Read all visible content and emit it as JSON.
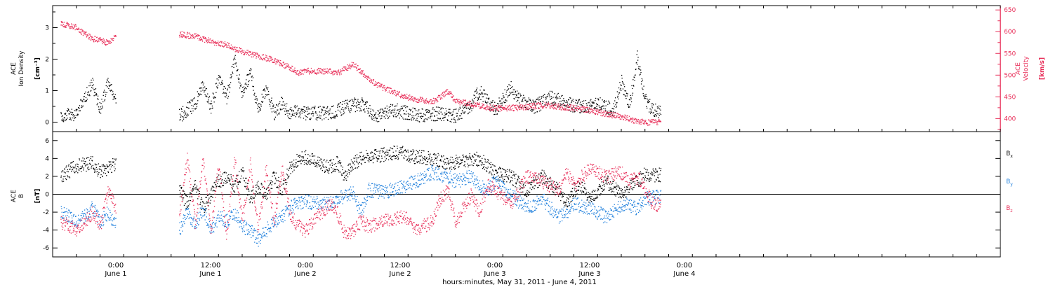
{
  "colors": {
    "axis": "#000000",
    "bx": "#000000",
    "by": "#1e7fdc",
    "bz": "#e8305a",
    "velocity": "#e8305a",
    "density": "#000000"
  },
  "xaxis": {
    "caption": "hours:minutes, May 31, 2011 - June  4, 2011",
    "range_hours": [
      -8,
      112
    ],
    "ticks": [
      {
        "hour": 0,
        "time": "0:00",
        "date": "June 1"
      },
      {
        "hour": 12,
        "time": "12:00",
        "date": "June 1"
      },
      {
        "hour": 24,
        "time": "0:00",
        "date": "June 2"
      },
      {
        "hour": 36,
        "time": "12:00",
        "date": "June 2"
      },
      {
        "hour": 48,
        "time": "0:00",
        "date": "June 3"
      },
      {
        "hour": 60,
        "time": "12:00",
        "date": "June 3"
      },
      {
        "hour": 72,
        "time": "0:00",
        "date": "June 4"
      }
    ]
  },
  "chart_data": [
    {
      "type": "scatter",
      "panel": "top",
      "ylabel_lines": [
        "ACE",
        "Ion Density"
      ],
      "yunit": "[cm⁻³]",
      "ylim": [
        -0.3,
        3.7
      ],
      "yticks": [
        0,
        1,
        2,
        3
      ],
      "y2label_lines": [
        "ACE",
        "Velocity"
      ],
      "y2unit": "[km/s]",
      "y2lim": [
        370,
        660
      ],
      "y2ticks": [
        400,
        450,
        500,
        550,
        600,
        650
      ],
      "series": [
        {
          "key": "density",
          "axis": "left",
          "points": [
            [
              -7,
              0.2
            ],
            [
              -5,
              0.3
            ],
            [
              -4,
              0.8
            ],
            [
              -3,
              1.2
            ],
            [
              -2,
              0.4
            ],
            [
              -1,
              1.3
            ],
            [
              0,
              0.6
            ],
            [
              8,
              0.2
            ],
            [
              10,
              0.6
            ],
            [
              11,
              1.2
            ],
            [
              12,
              0.5
            ],
            [
              13,
              1.4
            ],
            [
              14,
              0.8
            ],
            [
              15,
              2.0
            ],
            [
              16,
              0.9
            ],
            [
              17,
              1.6
            ],
            [
              18,
              0.4
            ],
            [
              19,
              1.1
            ],
            [
              20,
              0.3
            ],
            [
              21,
              0.6
            ],
            [
              22,
              0.3
            ],
            [
              23,
              0.4
            ],
            [
              24,
              0.3
            ],
            [
              27,
              0.3
            ],
            [
              29,
              0.5
            ],
            [
              31,
              0.6
            ],
            [
              33,
              0.2
            ],
            [
              35,
              0.4
            ],
            [
              37,
              0.3
            ],
            [
              39,
              0.2
            ],
            [
              41,
              0.3
            ],
            [
              43,
              0.2
            ],
            [
              45,
              0.6
            ],
            [
              46,
              1.0
            ],
            [
              47,
              0.7
            ],
            [
              48,
              0.4
            ],
            [
              50,
              1.1
            ],
            [
              51,
              0.7
            ],
            [
              53,
              0.5
            ],
            [
              55,
              0.8
            ],
            [
              57,
              0.6
            ],
            [
              59,
              0.5
            ],
            [
              61,
              0.6
            ],
            [
              63,
              0.4
            ],
            [
              64,
              1.3
            ],
            [
              65,
              0.5
            ],
            [
              66,
              2.1
            ],
            [
              67,
              0.7
            ],
            [
              68,
              0.4
            ],
            [
              69,
              0.3
            ]
          ]
        },
        {
          "key": "velocity",
          "axis": "right",
          "points": [
            [
              -7,
              620
            ],
            [
              -6,
              615
            ],
            [
              -5,
              610
            ],
            [
              -4,
              595
            ],
            [
              -3,
              585
            ],
            [
              -2,
              580
            ],
            [
              -1,
              575
            ],
            [
              0,
              590
            ],
            [
              8,
              595
            ],
            [
              10,
              590
            ],
            [
              12,
              578
            ],
            [
              14,
              570
            ],
            [
              16,
              555
            ],
            [
              18,
              545
            ],
            [
              20,
              535
            ],
            [
              22,
              518
            ],
            [
              23,
              505
            ],
            [
              24,
              510
            ],
            [
              27,
              510
            ],
            [
              28,
              505
            ],
            [
              29,
              515
            ],
            [
              30,
              525
            ],
            [
              31,
              510
            ],
            [
              32,
              490
            ],
            [
              34,
              470
            ],
            [
              36,
              455
            ],
            [
              38,
              445
            ],
            [
              40,
              440
            ],
            [
              41,
              450
            ],
            [
              42,
              465
            ],
            [
              43,
              440
            ],
            [
              45,
              435
            ],
            [
              46,
              430
            ],
            [
              48,
              425
            ],
            [
              50,
              425
            ],
            [
              52,
              428
            ],
            [
              54,
              432
            ],
            [
              56,
              428
            ],
            [
              58,
              425
            ],
            [
              60,
              420
            ],
            [
              62,
              412
            ],
            [
              64,
              405
            ],
            [
              66,
              395
            ],
            [
              67,
              392
            ],
            [
              68,
              393
            ],
            [
              69,
              392
            ]
          ]
        }
      ]
    },
    {
      "type": "scatter",
      "panel": "bottom",
      "ylabel_lines": [
        "ACE",
        "B"
      ],
      "yunit": "[nT]",
      "ylim": [
        -7,
        7
      ],
      "yticks": [
        -6,
        -4,
        -2,
        0,
        2,
        4,
        6
      ],
      "zero_line": true,
      "series": [
        {
          "key": "bx",
          "name_main": "B",
          "name_sub": "x",
          "points": [
            [
              -7,
              2.0
            ],
            [
              -5,
              3.2
            ],
            [
              -3,
              3.5
            ],
            [
              -2,
              2.5
            ],
            [
              -1,
              3.0
            ],
            [
              0,
              3.6
            ],
            [
              8,
              0.5
            ],
            [
              9,
              -1.0
            ],
            [
              10,
              1.0
            ],
            [
              11,
              -1.5
            ],
            [
              12,
              0.0
            ],
            [
              13,
              1.5
            ],
            [
              14,
              2.0
            ],
            [
              15,
              1.0
            ],
            [
              16,
              2.5
            ],
            [
              17,
              -0.5
            ],
            [
              18,
              1.0
            ],
            [
              19,
              0.0
            ],
            [
              20,
              2.0
            ],
            [
              21,
              0.5
            ],
            [
              22,
              3.0
            ],
            [
              23,
              4.0
            ],
            [
              24,
              4.2
            ],
            [
              27,
              3.0
            ],
            [
              28,
              3.5
            ],
            [
              29,
              2.0
            ],
            [
              30,
              3.5
            ],
            [
              31,
              4.0
            ],
            [
              32,
              4.2
            ],
            [
              34,
              4.5
            ],
            [
              35,
              4.7
            ],
            [
              36,
              4.7
            ],
            [
              37,
              4.5
            ],
            [
              38,
              4.2
            ],
            [
              40,
              4.0
            ],
            [
              42,
              3.5
            ],
            [
              44,
              3.8
            ],
            [
              46,
              4.0
            ],
            [
              47,
              3.2
            ],
            [
              48,
              2.5
            ],
            [
              50,
              2.0
            ],
            [
              52,
              0.5
            ],
            [
              54,
              2.0
            ],
            [
              56,
              0.5
            ],
            [
              57,
              -1.0
            ],
            [
              58,
              0.5
            ],
            [
              59,
              1.0
            ],
            [
              60,
              -0.5
            ],
            [
              62,
              1.5
            ],
            [
              64,
              0.0
            ],
            [
              66,
              1.5
            ],
            [
              67,
              2.3
            ],
            [
              68,
              2.2
            ],
            [
              69,
              2.2
            ]
          ]
        },
        {
          "key": "by",
          "name_main": "B",
          "name_sub": "y",
          "points": [
            [
              -7,
              -2.0
            ],
            [
              -5,
              -3.0
            ],
            [
              -4,
              -2.5
            ],
            [
              -3,
              -1.5
            ],
            [
              -2,
              -3.0
            ],
            [
              -1,
              -2.0
            ],
            [
              0,
              -3.5
            ],
            [
              8,
              -4.0
            ],
            [
              9,
              -2.0
            ],
            [
              10,
              -3.5
            ],
            [
              11,
              -1.5
            ],
            [
              12,
              -4.0
            ],
            [
              13,
              -2.5
            ],
            [
              14,
              -3.0
            ],
            [
              15,
              -2.0
            ],
            [
              16,
              -3.5
            ],
            [
              17,
              -4.0
            ],
            [
              18,
              -5.0
            ],
            [
              19,
              -4.0
            ],
            [
              20,
              -3.0
            ],
            [
              21,
              -2.5
            ],
            [
              22,
              -1.5
            ],
            [
              23,
              -0.8
            ],
            [
              24,
              -0.8
            ],
            [
              27,
              -1.0
            ],
            [
              28,
              -0.5
            ],
            [
              30,
              0.2
            ],
            [
              31,
              -2.0
            ],
            [
              32,
              0.5
            ],
            [
              34,
              0.3
            ],
            [
              36,
              0.8
            ],
            [
              37,
              1.2
            ],
            [
              38,
              1.5
            ],
            [
              40,
              2.5
            ],
            [
              42,
              2.0
            ],
            [
              43,
              1.5
            ],
            [
              45,
              2.0
            ],
            [
              46,
              1.0
            ],
            [
              47,
              0.5
            ],
            [
              48,
              1.5
            ],
            [
              50,
              0.0
            ],
            [
              52,
              -1.5
            ],
            [
              54,
              -0.5
            ],
            [
              56,
              -2.5
            ],
            [
              57,
              -2.0
            ],
            [
              58,
              -1.0
            ],
            [
              60,
              -1.5
            ],
            [
              62,
              -2.5
            ],
            [
              64,
              -1.0
            ],
            [
              66,
              -1.5
            ],
            [
              67,
              -0.5
            ],
            [
              68,
              -0.3
            ],
            [
              69,
              -0.3
            ]
          ]
        },
        {
          "key": "bz",
          "name_main": "B",
          "name_sub": "z",
          "points": [
            [
              -7,
              -3.0
            ],
            [
              -5,
              -4.0
            ],
            [
              -4,
              -3.0
            ],
            [
              -3,
              -2.0
            ],
            [
              -2,
              -3.5
            ],
            [
              -1,
              0.5
            ],
            [
              0,
              -1.5
            ],
            [
              8,
              -2.5
            ],
            [
              9,
              4.0
            ],
            [
              10,
              -3.0
            ],
            [
              11,
              4.0
            ],
            [
              12,
              -4.0
            ],
            [
              13,
              3.5
            ],
            [
              14,
              -4.5
            ],
            [
              15,
              4.0
            ],
            [
              16,
              -3.0
            ],
            [
              17,
              3.5
            ],
            [
              18,
              -4.0
            ],
            [
              19,
              3.0
            ],
            [
              20,
              -3.0
            ],
            [
              21,
              3.0
            ],
            [
              22,
              -2.0
            ],
            [
              23,
              -3.5
            ],
            [
              24,
              -4.0
            ],
            [
              27,
              -1.0
            ],
            [
              28,
              -2.0
            ],
            [
              29,
              -4.5
            ],
            [
              30,
              -4.0
            ],
            [
              31,
              -3.0
            ],
            [
              32,
              -3.5
            ],
            [
              34,
              -3.0
            ],
            [
              36,
              -2.5
            ],
            [
              37,
              -2.8
            ],
            [
              38,
              -4.0
            ],
            [
              40,
              -3.0
            ],
            [
              41,
              -0.5
            ],
            [
              42,
              0.5
            ],
            [
              43,
              -3.0
            ],
            [
              44,
              -1.5
            ],
            [
              45,
              0.0
            ],
            [
              46,
              -2.0
            ],
            [
              47,
              1.0
            ],
            [
              48,
              0.5
            ],
            [
              50,
              -1.0
            ],
            [
              52,
              2.0
            ],
            [
              54,
              1.5
            ],
            [
              56,
              0.5
            ],
            [
              57,
              2.5
            ],
            [
              58,
              1.0
            ],
            [
              60,
              3.0
            ],
            [
              62,
              2.0
            ],
            [
              64,
              2.5
            ],
            [
              65,
              1.5
            ],
            [
              66,
              2.0
            ],
            [
              67,
              0.5
            ],
            [
              68,
              -1.0
            ],
            [
              69,
              -1.2
            ]
          ]
        }
      ]
    }
  ]
}
